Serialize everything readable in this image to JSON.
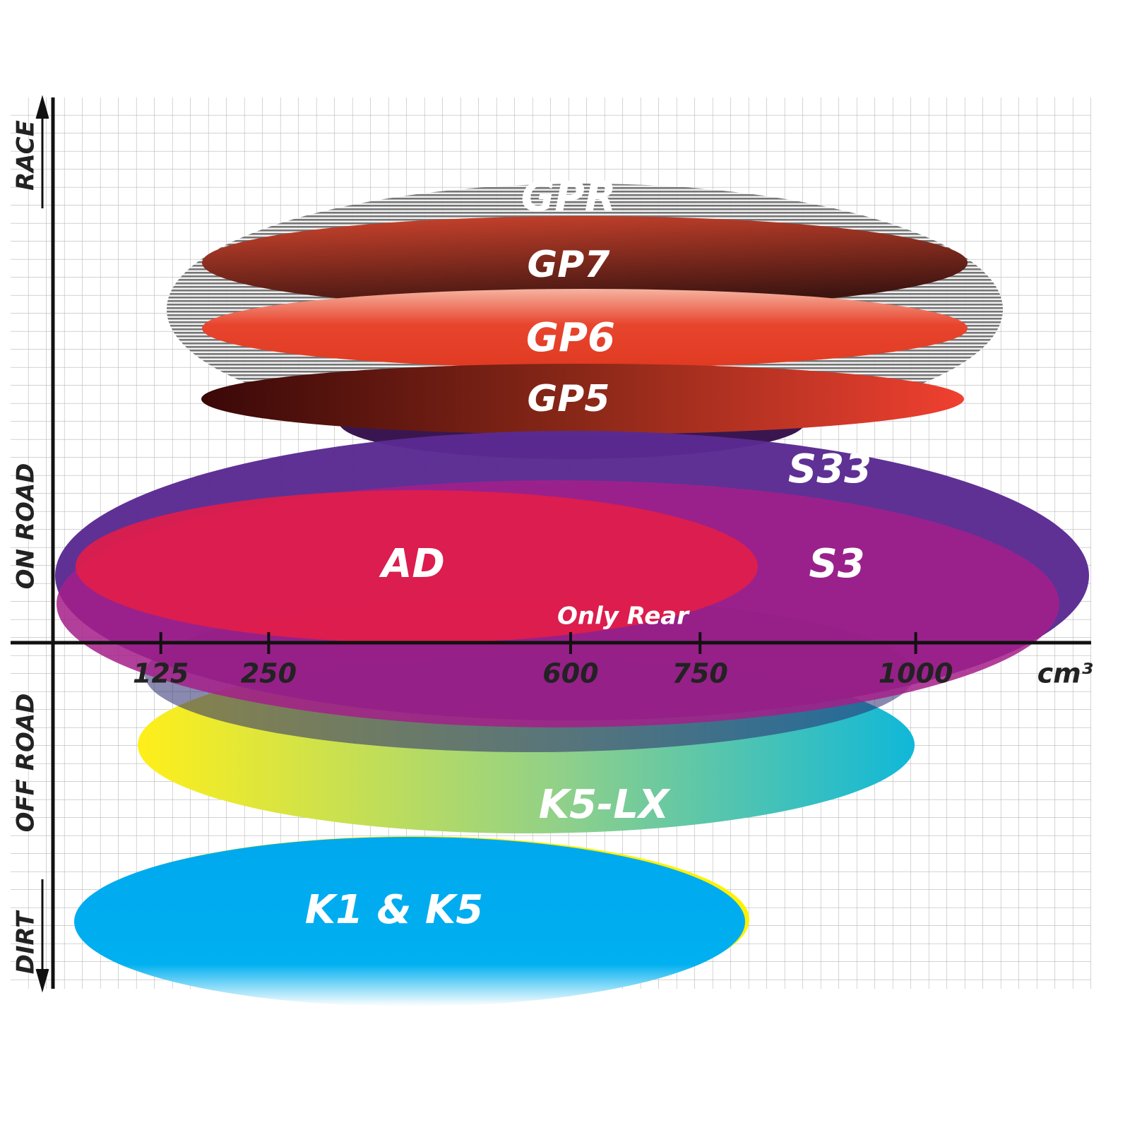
{
  "axis": {
    "y_labels": [
      "RACE",
      "ON ROAD",
      "OFF ROAD",
      "DIRT"
    ],
    "x_ticks": [
      125,
      250,
      600,
      750,
      1000
    ],
    "x_unit": "cm³"
  },
  "ellipses": [
    {
      "label": "GPR"
    },
    {
      "label": "GP7"
    },
    {
      "label": "GP6"
    },
    {
      "label": "GP5"
    },
    {
      "label": "S33"
    },
    {
      "label": "S3"
    },
    {
      "label": "AD"
    },
    {
      "label": "Only Rear"
    },
    {
      "label": "K5-LX"
    },
    {
      "label": "K1 & K5"
    }
  ]
}
